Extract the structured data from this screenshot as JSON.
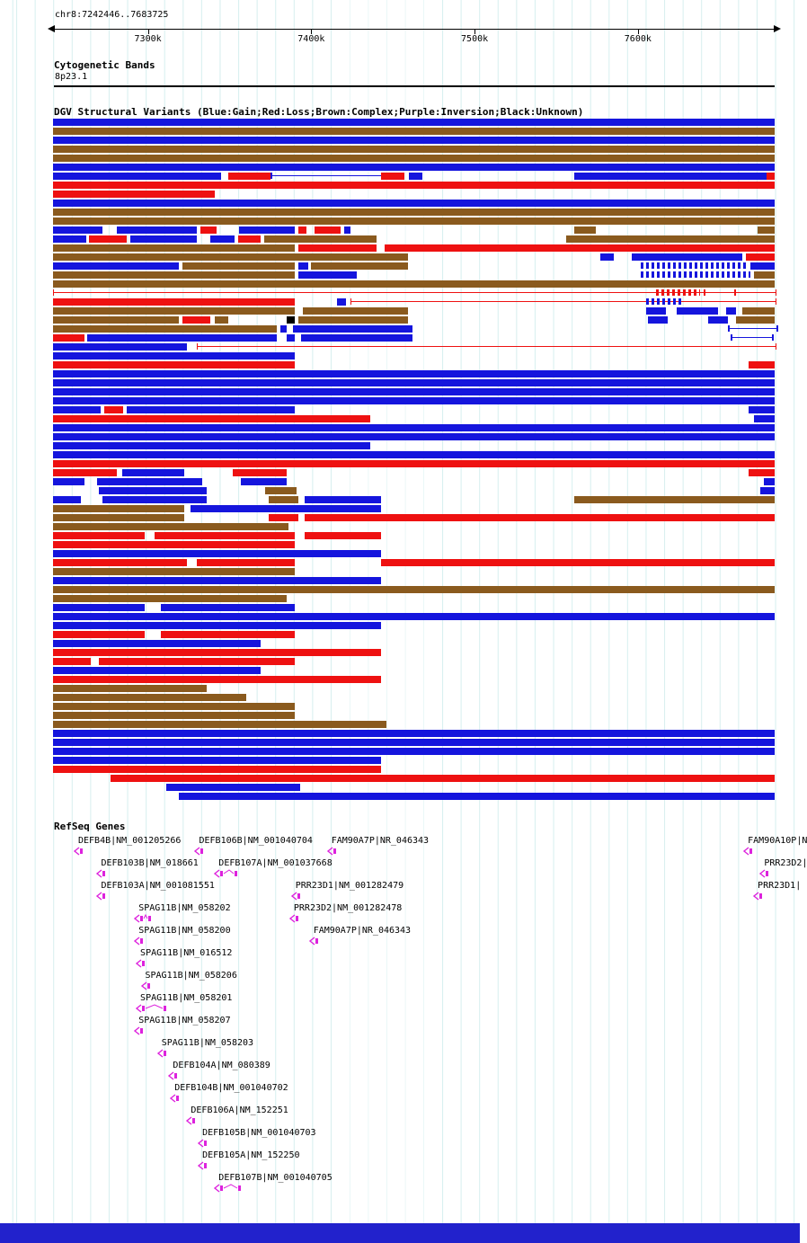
{
  "region_label": "chr8:7242446..7683725",
  "ruler": {
    "ticks": [
      {
        "kb": 7300,
        "label": "7300k"
      },
      {
        "kb": 7400,
        "label": "7400k"
      },
      {
        "kb": 7500,
        "label": "7500k"
      },
      {
        "kb": 7600,
        "label": "7600k"
      }
    ]
  },
  "sections": {
    "cytobands": {
      "title": "Cytogenetic Bands",
      "band_label": "8p23.1"
    },
    "dgv": {
      "title": "DGV Structural Variants (Blue:Gain;Red:Loss;Brown:Complex;Purple:Inversion;Black:Unknown)"
    },
    "refseq": {
      "title": "RefSeq Genes"
    }
  },
  "colors": {
    "gain_blue": "#1515dd",
    "loss_red": "#ee1111",
    "complex_brown": "#8a5a1e",
    "inversion_purple": "#7a007a",
    "unknown_black": "#000000",
    "gene_magenta": "#dd22dd",
    "grid": "#d9f0f0",
    "footer_bar": "#2222cc"
  },
  "chart_data": {
    "type": "genome-tracks",
    "x_range_kb": [
      7242.446,
      7683.725
    ],
    "legend": {
      "blue": "Gain",
      "red": "Loss",
      "brown": "Complex",
      "purple": "Inversion",
      "black": "Unknown"
    },
    "dgv_variant_rows": [
      [
        [
          7242,
          7684,
          "B"
        ]
      ],
      [
        [
          7242,
          7684,
          "N"
        ]
      ],
      [
        [
          7242,
          7684,
          "B"
        ]
      ],
      [
        [
          7242,
          7684,
          "N"
        ]
      ],
      [
        [
          7242,
          7684,
          "N"
        ]
      ],
      [
        [
          7242,
          7684,
          "B"
        ]
      ],
      [
        [
          7242,
          7345,
          "B"
        ],
        [
          7349,
          7375,
          "R"
        ],
        [
          7375,
          7443,
          "B",
          "X"
        ],
        [
          7443,
          7457,
          "R"
        ],
        [
          7460,
          7468,
          "B"
        ],
        [
          7561,
          7679,
          "B"
        ],
        [
          7679,
          7684,
          "R"
        ]
      ],
      [
        [
          7242,
          7684,
          "R"
        ]
      ],
      [
        [
          7242,
          7341,
          "R"
        ]
      ],
      [
        [
          7242,
          7684,
          "B"
        ]
      ],
      [
        [
          7242,
          7684,
          "N"
        ]
      ],
      [
        [
          7242,
          7684,
          "N"
        ]
      ],
      [
        [
          7242,
          7272,
          "B"
        ],
        [
          7281,
          7330,
          "B"
        ],
        [
          7332,
          7342,
          "R"
        ],
        [
          7356,
          7390,
          "B"
        ],
        [
          7392,
          7397,
          "R"
        ],
        [
          7402,
          7418,
          "R"
        ],
        [
          7420,
          7424,
          "B"
        ],
        [
          7561,
          7574,
          "N"
        ],
        [
          7673,
          7684,
          "N"
        ]
      ],
      [
        [
          7242,
          7262,
          "B"
        ],
        [
          7264,
          7287,
          "R"
        ],
        [
          7289,
          7330,
          "B"
        ],
        [
          7338,
          7353,
          "B"
        ],
        [
          7355,
          7369,
          "R"
        ],
        [
          7371,
          7440,
          "N"
        ],
        [
          7556,
          7684,
          "N"
        ]
      ],
      [
        [
          7242,
          7390,
          "N"
        ],
        [
          7392,
          7440,
          "R"
        ],
        [
          7445,
          7684,
          "R"
        ]
      ],
      [
        [
          7242,
          7459,
          "N"
        ],
        [
          7577,
          7585,
          "B"
        ],
        [
          7596,
          7664,
          "B"
        ],
        [
          7666,
          7684,
          "R"
        ]
      ],
      [
        [
          7242,
          7319,
          "B"
        ],
        [
          7321,
          7390,
          "N"
        ],
        [
          7392,
          7398,
          "B"
        ],
        [
          7400,
          7459,
          "N"
        ],
        [
          7602,
          7666,
          "B",
          "D"
        ],
        [
          7669,
          7684,
          "B"
        ]
      ],
      [
        [
          7242,
          7390,
          "N"
        ],
        [
          7392,
          7428,
          "B"
        ],
        [
          7602,
          7669,
          "B",
          "D"
        ],
        [
          7671,
          7684,
          "N"
        ]
      ],
      [
        [
          7242,
          7684,
          "N"
        ]
      ],
      [
        [
          7242,
          7684,
          "R",
          "L"
        ],
        [
          7611,
          7638,
          "R",
          "D"
        ],
        [
          7640,
          7658,
          "R",
          "X"
        ]
      ],
      [
        [
          7242,
          7390,
          "R"
        ],
        [
          7416,
          7421,
          "B"
        ],
        [
          7424,
          7684,
          "R",
          "L"
        ],
        [
          7605,
          7627,
          "B",
          "D"
        ]
      ],
      [
        [
          7242,
          7390,
          "N"
        ],
        [
          7395,
          7459,
          "N"
        ],
        [
          7605,
          7617,
          "B"
        ],
        [
          7624,
          7649,
          "B"
        ],
        [
          7654,
          7660,
          "B"
        ],
        [
          7664,
          7684,
          "N"
        ]
      ],
      [
        [
          7242,
          7319,
          "N"
        ],
        [
          7321,
          7338,
          "R"
        ],
        [
          7341,
          7349,
          "N"
        ],
        [
          7385,
          7390,
          "K"
        ],
        [
          7392,
          7459,
          "N"
        ],
        [
          7606,
          7618,
          "B"
        ],
        [
          7643,
          7655,
          "B"
        ],
        [
          7660,
          7684,
          "N"
        ]
      ],
      [
        [
          7242,
          7379,
          "N"
        ],
        [
          7381,
          7385,
          "B"
        ],
        [
          7389,
          7462,
          "B"
        ],
        [
          7655,
          7684,
          "B",
          "X"
        ]
      ],
      [
        [
          7242,
          7261,
          "R"
        ],
        [
          7263,
          7379,
          "B"
        ],
        [
          7385,
          7390,
          "B"
        ],
        [
          7394,
          7462,
          "B"
        ],
        [
          7657,
          7681,
          "B",
          "X"
        ]
      ],
      [
        [
          7242,
          7324,
          "B"
        ],
        [
          7330,
          7684,
          "R",
          "L"
        ]
      ],
      [
        [
          7242,
          7390,
          "B"
        ]
      ],
      [
        [
          7242,
          7390,
          "R"
        ],
        [
          7668,
          7684,
          "R"
        ]
      ],
      [
        [
          7242,
          7684,
          "B"
        ]
      ],
      [
        [
          7242,
          7684,
          "B"
        ]
      ],
      [
        [
          7242,
          7684,
          "B"
        ]
      ],
      [
        [
          7242,
          7684,
          "B"
        ]
      ],
      [
        [
          7242,
          7271,
          "B"
        ],
        [
          7273,
          7285,
          "R"
        ],
        [
          7287,
          7390,
          "B"
        ],
        [
          7668,
          7684,
          "B"
        ]
      ],
      [
        [
          7242,
          7436,
          "R"
        ],
        [
          7671,
          7684,
          "B"
        ]
      ],
      [
        [
          7242,
          7684,
          "B"
        ]
      ],
      [
        [
          7242,
          7684,
          "B"
        ]
      ],
      [
        [
          7242,
          7436,
          "B"
        ]
      ],
      [
        [
          7242,
          7684,
          "B"
        ]
      ],
      [
        [
          7242,
          7684,
          "R"
        ]
      ],
      [
        [
          7242,
          7281,
          "R"
        ],
        [
          7284,
          7322,
          "B"
        ],
        [
          7352,
          7385,
          "R"
        ],
        [
          7668,
          7684,
          "R"
        ]
      ],
      [
        [
          7242,
          7261,
          "B"
        ],
        [
          7269,
          7333,
          "B"
        ],
        [
          7357,
          7385,
          "B"
        ],
        [
          7677,
          7684,
          "B"
        ]
      ],
      [
        [
          7270,
          7336,
          "B"
        ],
        [
          7372,
          7391,
          "N"
        ],
        [
          7675,
          7684,
          "B"
        ]
      ],
      [
        [
          7242,
          7259,
          "B"
        ],
        [
          7272,
          7336,
          "B"
        ],
        [
          7374,
          7392,
          "N"
        ],
        [
          7396,
          7443,
          "B"
        ],
        [
          7561,
          7684,
          "N"
        ]
      ],
      [
        [
          7242,
          7322,
          "N"
        ],
        [
          7326,
          7443,
          "B"
        ]
      ],
      [
        [
          7242,
          7322,
          "N"
        ],
        [
          7374,
          7392,
          "R"
        ],
        [
          7396,
          7684,
          "R"
        ]
      ],
      [
        [
          7242,
          7386,
          "N"
        ]
      ],
      [
        [
          7242,
          7298,
          "R"
        ],
        [
          7304,
          7390,
          "R"
        ],
        [
          7396,
          7443,
          "R"
        ]
      ],
      [
        [
          7242,
          7390,
          "R"
        ]
      ],
      [
        [
          7242,
          7443,
          "B"
        ]
      ],
      [
        [
          7242,
          7324,
          "R"
        ],
        [
          7330,
          7390,
          "R"
        ],
        [
          7443,
          7684,
          "R"
        ]
      ],
      [
        [
          7242,
          7390,
          "N"
        ]
      ],
      [
        [
          7242,
          7443,
          "B"
        ]
      ],
      [
        [
          7242,
          7684,
          "N"
        ]
      ],
      [
        [
          7242,
          7385,
          "N"
        ]
      ],
      [
        [
          7242,
          7298,
          "B"
        ],
        [
          7308,
          7390,
          "B"
        ]
      ],
      [
        [
          7242,
          7684,
          "B"
        ]
      ],
      [
        [
          7242,
          7443,
          "B"
        ]
      ],
      [
        [
          7242,
          7298,
          "R"
        ],
        [
          7308,
          7390,
          "R"
        ]
      ],
      [
        [
          7242,
          7369,
          "B"
        ]
      ],
      [
        [
          7242,
          7443,
          "R"
        ]
      ],
      [
        [
          7242,
          7265,
          "R"
        ],
        [
          7270,
          7390,
          "R"
        ]
      ],
      [
        [
          7242,
          7369,
          "B"
        ]
      ],
      [
        [
          7242,
          7443,
          "R"
        ]
      ],
      [
        [
          7242,
          7336,
          "N"
        ]
      ],
      [
        [
          7242,
          7360,
          "N"
        ]
      ],
      [
        [
          7242,
          7390,
          "N"
        ]
      ],
      [
        [
          7242,
          7390,
          "N"
        ]
      ],
      [
        [
          7242,
          7446,
          "N"
        ]
      ],
      [
        [
          7242,
          7684,
          "B"
        ]
      ],
      [
        [
          7242,
          7684,
          "B"
        ]
      ],
      [
        [
          7242,
          7684,
          "B"
        ]
      ],
      [
        [
          7242,
          7443,
          "B"
        ]
      ],
      [
        [
          7242,
          7443,
          "R"
        ]
      ],
      [
        [
          7277,
          7684,
          "R"
        ]
      ],
      [
        [
          7311,
          7393,
          "B"
        ]
      ],
      [
        [
          7319,
          7684,
          "B"
        ]
      ]
    ],
    "refseq_genes": [
      {
        "label": "DEFB4B|NM_001205266",
        "kb": 7254,
        "w": 8,
        "row": 0
      },
      {
        "label": "DEFB106B|NM_001040704",
        "kb": 7328,
        "w": 7,
        "row": 0
      },
      {
        "label": "FAM90A7P|NR_046343",
        "kb": 7409,
        "w": 10,
        "row": 0
      },
      {
        "label": "FAM90A10P|N",
        "kb": 7664,
        "w": 5,
        "row": 0
      },
      {
        "label": "DEFB103B|NM_018661",
        "kb": 7268,
        "w": 6,
        "row": 1
      },
      {
        "label": "DEFB107A|NM_001037668",
        "kb": 7340,
        "w": 15,
        "row": 1
      },
      {
        "label": "PRR23D2|",
        "kb": 7674,
        "w": 4,
        "row": 1
      },
      {
        "label": "DEFB103A|NM_001081551",
        "kb": 7268,
        "w": 6,
        "row": 2
      },
      {
        "label": "PRR23D1|NM_001282479",
        "kb": 7387,
        "w": 4,
        "row": 2
      },
      {
        "label": "PRR23D1|",
        "kb": 7670,
        "w": 4,
        "row": 2
      },
      {
        "label": "SPAG11B|NM_058202",
        "kb": 7291,
        "w": 11,
        "row": 3
      },
      {
        "label": "PRR23D2|NM_001282478",
        "kb": 7386,
        "w": 4,
        "row": 3
      },
      {
        "label": "SPAG11B|NM_058200",
        "kb": 7291,
        "w": 10,
        "row": 4
      },
      {
        "label": "FAM90A7P|NR_046343",
        "kb": 7398,
        "w": 7,
        "row": 4
      },
      {
        "label": "SPAG11B|NM_016512",
        "kb": 7292,
        "w": 8,
        "row": 5
      },
      {
        "label": "SPAG11B|NM_058206",
        "kb": 7295,
        "w": 4,
        "row": 6
      },
      {
        "label": "SPAG11B|NM_058201",
        "kb": 7292,
        "w": 19,
        "row": 7
      },
      {
        "label": "SPAG11B|NM_058207",
        "kb": 7291,
        "w": 8,
        "row": 8
      },
      {
        "label": "SPAG11B|NM_058203",
        "kb": 7305,
        "w": 6,
        "row": 9
      },
      {
        "label": "DEFB104A|NM_080389",
        "kb": 7312,
        "w": 8,
        "row": 10
      },
      {
        "label": "DEFB104B|NM_001040702",
        "kb": 7313,
        "w": 8,
        "row": 11
      },
      {
        "label": "DEFB106A|NM_152251",
        "kb": 7323,
        "w": 9,
        "row": 12
      },
      {
        "label": "DEFB105B|NM_001040703",
        "kb": 7330,
        "w": 4,
        "row": 13
      },
      {
        "label": "DEFB105A|NM_152250",
        "kb": 7330,
        "w": 4,
        "row": 14
      },
      {
        "label": "DEFB107B|NM_001040705",
        "kb": 7340,
        "w": 17,
        "row": 15
      }
    ]
  }
}
